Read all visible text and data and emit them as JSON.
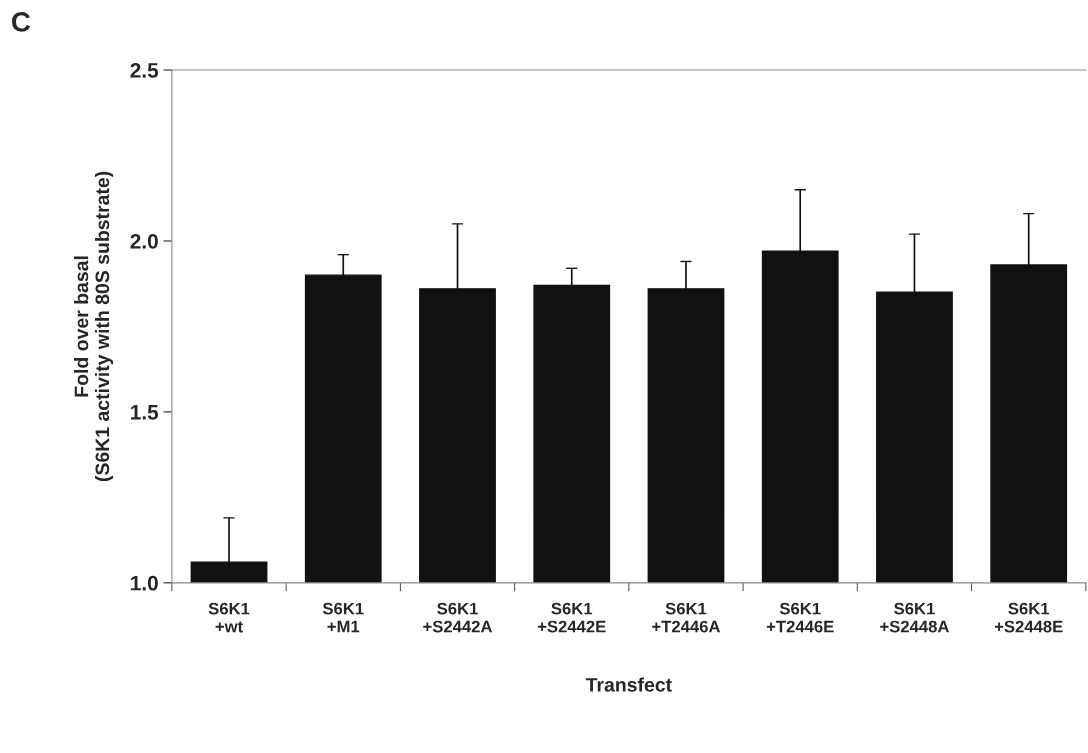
{
  "chart_data": {
    "type": "bar",
    "xlabel": "Transfect",
    "ylabel": "Fold over basal\n(S6K1 activity with 80S substrate)",
    "categories": [
      "S6K1\n+wt",
      "S6K1\n+M1",
      "S6K1\n+S2442A",
      "S6K1\n+S2442E",
      "S6K1\n+T2446A",
      "S6K1\n+T2446E",
      "S6K1\n+S2448A",
      "S6K1\n+S2448E"
    ],
    "values": [
      1.06,
      1.9,
      1.86,
      1.87,
      1.86,
      1.97,
      1.85,
      1.93
    ],
    "errors": [
      0.13,
      0.06,
      0.19,
      0.05,
      0.08,
      0.18,
      0.17,
      0.15
    ],
    "color": "#111111",
    "ylim": [
      1.0,
      2.5
    ],
    "yticks": [
      {
        "value": 1.0,
        "label": "1.0"
      },
      1.5,
      {
        "value": 2.0,
        "label": "2.0"
      },
      2.5
    ],
    "grid": false,
    "legend": false,
    "annotations": [
      "C"
    ]
  }
}
